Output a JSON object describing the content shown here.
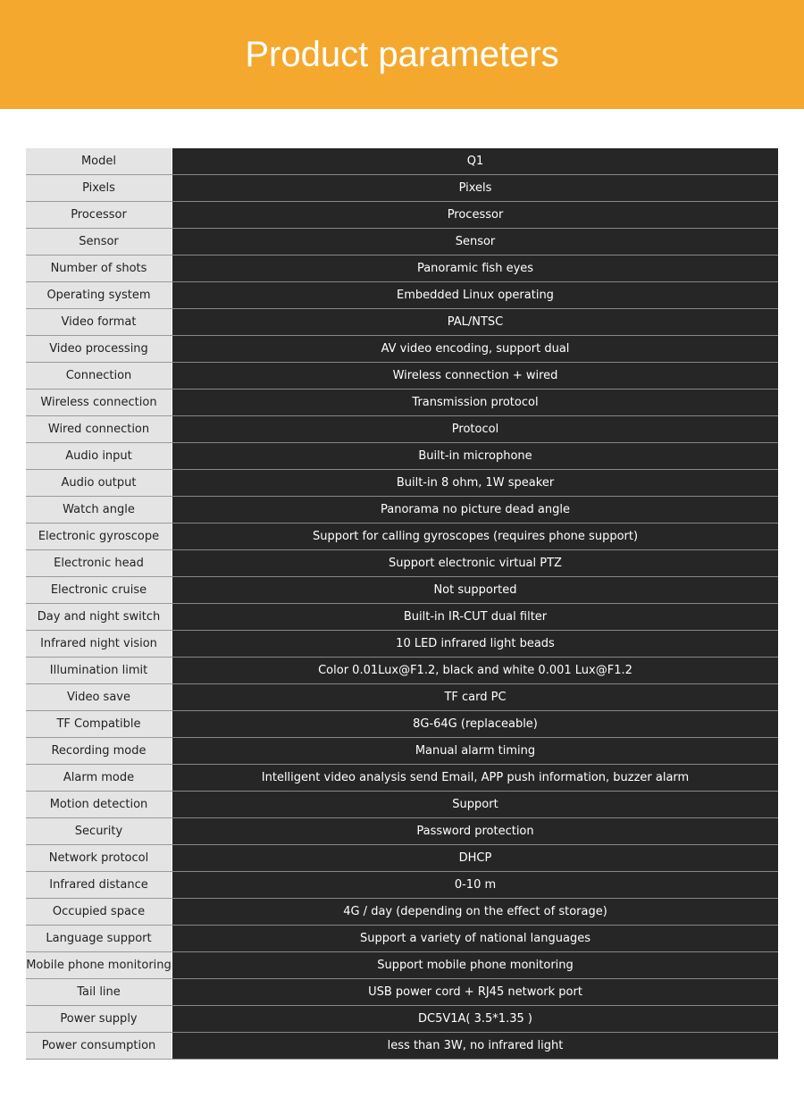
{
  "header": {
    "title": "Product parameters"
  },
  "table": {
    "rows": [
      [
        "Model",
        "Q1"
      ],
      [
        "Pixels",
        "Pixels"
      ],
      [
        "Processor",
        "Processor"
      ],
      [
        "Sensor",
        "Sensor"
      ],
      [
        "Number of shots",
        "Panoramic fish eyes"
      ],
      [
        "Operating system",
        "Embedded Linux operating"
      ],
      [
        "Video format",
        "PAL/NTSC"
      ],
      [
        "Video processing",
        "AV video encoding, support dual"
      ],
      [
        "Connection",
        "Wireless connection + wired"
      ],
      [
        "Wireless connection",
        "Transmission protocol"
      ],
      [
        "Wired connection",
        "Protocol"
      ],
      [
        "Audio input",
        "Built-in microphone"
      ],
      [
        "Audio output",
        "Built-in 8 ohm, 1W speaker"
      ],
      [
        "Watch angle",
        "Panorama no picture dead angle"
      ],
      [
        "Electronic gyroscope",
        "Support for calling gyroscopes (requires phone support)"
      ],
      [
        "Electronic head",
        "Support electronic virtual PTZ"
      ],
      [
        "Electronic cruise",
        "Not supported"
      ],
      [
        "Day and night switch",
        "Built-in IR-CUT dual filter"
      ],
      [
        "Infrared night vision",
        "10 LED infrared light beads"
      ],
      [
        "Illumination limit",
        "Color 0.01Lux@F1.2, black and white 0.001 Lux@F1.2"
      ],
      [
        "Video save",
        "TF card PC"
      ],
      [
        "TF Compatible",
        "8G-64G (replaceable)"
      ],
      [
        "Recording mode",
        "Manual alarm timing"
      ],
      [
        "Alarm mode",
        "Intelligent video analysis send Email, APP push information, buzzer alarm"
      ],
      [
        "Motion detection",
        "Support"
      ],
      [
        "Security",
        "Password protection"
      ],
      [
        "Network protocol",
        "DHCP"
      ],
      [
        "Infrared distance",
        "0-10 m"
      ],
      [
        "Occupied space",
        "4G / day (depending on the effect of storage)"
      ],
      [
        "Language support",
        "Support a variety of national languages"
      ],
      [
        "Mobile phone monitoring",
        "Support mobile phone monitoring"
      ],
      [
        "Tail line",
        "USB power cord + RJ45 network port"
      ],
      [
        "Power supply",
        "DC5V1A( 3.5*1.35 )"
      ],
      [
        "Power consumption",
        "less than 3W, no infrared light"
      ]
    ]
  }
}
